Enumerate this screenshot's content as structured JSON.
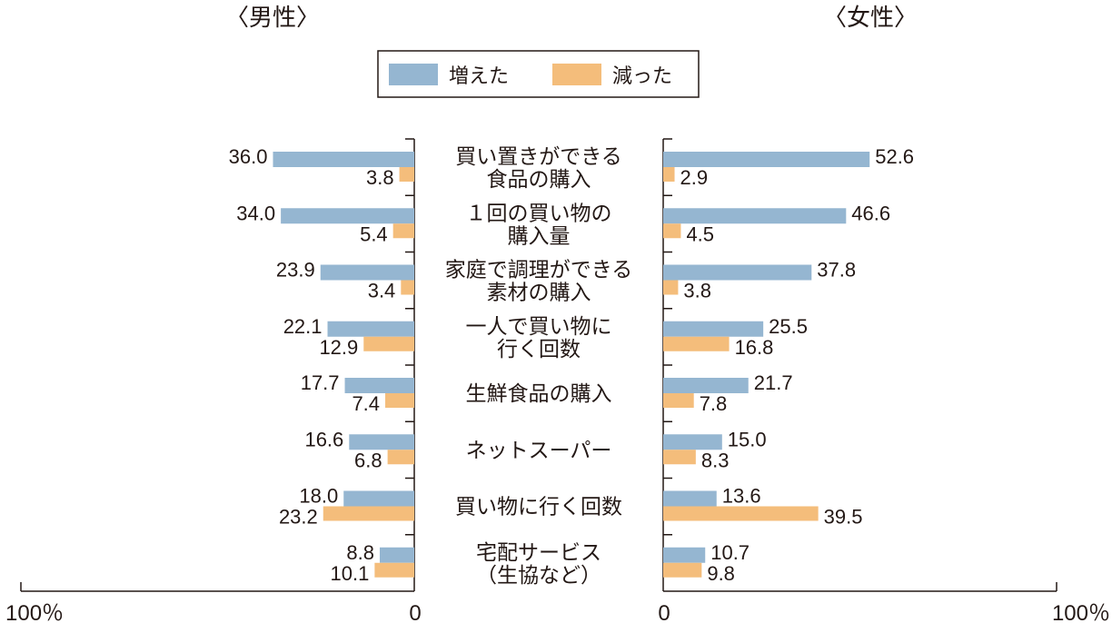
{
  "chart_data": {
    "type": "bar",
    "orientation": "horizontal",
    "panels": [
      {
        "title": "〈男性〉",
        "direction": "leftward"
      },
      {
        "title": "〈女性〉",
        "direction": "rightward"
      }
    ],
    "categories": [
      [
        "買い置きができる",
        "食品の購入"
      ],
      [
        "１回の買い物の",
        "購入量"
      ],
      [
        "家庭で調理ができる",
        "素材の購入"
      ],
      [
        "一人で買い物に",
        "行く回数"
      ],
      [
        "生鮮食品の購入"
      ],
      [
        "ネットスーパー"
      ],
      [
        "買い物に行く回数"
      ],
      [
        "宅配サービス",
        "（生協など）"
      ]
    ],
    "series": [
      {
        "name": "増えた",
        "color": "#95b6d1",
        "male": [
          36.0,
          34.0,
          23.9,
          22.1,
          17.7,
          16.6,
          18.0,
          8.8
        ],
        "female": [
          52.6,
          46.6,
          37.8,
          25.5,
          21.7,
          15.0,
          13.6,
          10.7
        ]
      },
      {
        "name": "減った",
        "color": "#f4bd7b",
        "male": [
          3.8,
          5.4,
          3.4,
          12.9,
          7.4,
          6.8,
          23.2,
          10.1
        ],
        "female": [
          2.9,
          4.5,
          3.8,
          16.8,
          7.8,
          8.3,
          39.5,
          9.8
        ]
      }
    ],
    "xlim": [
      0,
      100
    ],
    "tick_labels": {
      "male": [
        "100％",
        "0"
      ],
      "female": [
        "0",
        "100％"
      ]
    },
    "legend": "top-center",
    "grid": false
  }
}
